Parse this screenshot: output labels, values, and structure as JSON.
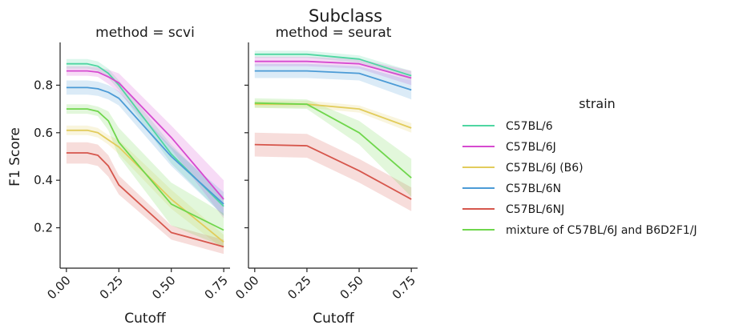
{
  "chart_data": {
    "type": "line",
    "title": "Subclass",
    "xlabel": "Cutoff",
    "ylabel": "F1 Score",
    "xlim": [
      -0.03,
      0.78
    ],
    "ylim": [
      0.03,
      0.98
    ],
    "x_ticks": [
      0.0,
      0.25,
      0.5,
      0.75
    ],
    "x_tick_labels": [
      "0.00",
      "0.25",
      "0.50",
      "0.75"
    ],
    "y_ticks": [
      0.2,
      0.4,
      0.6,
      0.8
    ],
    "y_tick_labels": [
      "0.2",
      "0.4",
      "0.6",
      "0.8"
    ],
    "grid": false,
    "legend": {
      "title": "strain",
      "placement": "right",
      "entries": [
        {
          "name": "C57BL/6",
          "color": "#4fd6a2"
        },
        {
          "name": "C57BL/6J",
          "color": "#d64ad0"
        },
        {
          "name": "C57BL/6J (B6)",
          "color": "#e2cc5c"
        },
        {
          "name": "C57BL/6N",
          "color": "#4c9bd6"
        },
        {
          "name": "C57BL/6NJ",
          "color": "#d6564c"
        },
        {
          "name": "mixture of C57BL/6J and B6D2F1/J",
          "color": "#6fd64c"
        }
      ]
    },
    "panels": [
      {
        "title": "method = scvi",
        "x": [
          0.0,
          0.05,
          0.1,
          0.15,
          0.2,
          0.25,
          0.5,
          0.75
        ],
        "series": [
          {
            "name": "C57BL/6",
            "values": [
              0.89,
              0.89,
              0.89,
              0.88,
              0.85,
              0.8,
              0.51,
              0.29
            ],
            "ci": [
              0.02,
              0.02,
              0.02,
              0.02,
              0.02,
              0.02,
              0.04,
              0.04
            ]
          },
          {
            "name": "C57BL/6J",
            "values": [
              0.86,
              0.86,
              0.86,
              0.855,
              0.835,
              0.81,
              0.58,
              0.32
            ],
            "ci": [
              0.02,
              0.02,
              0.02,
              0.02,
              0.03,
              0.04,
              0.05,
              0.08
            ]
          },
          {
            "name": "C57BL/6J (B6)",
            "values": [
              0.61,
              0.61,
              0.61,
              0.6,
              0.57,
              0.54,
              0.32,
              0.14
            ],
            "ci": [
              0.02,
              0.02,
              0.02,
              0.02,
              0.02,
              0.03,
              0.04,
              0.03
            ]
          },
          {
            "name": "C57BL/6N",
            "values": [
              0.79,
              0.79,
              0.79,
              0.785,
              0.77,
              0.745,
              0.5,
              0.3
            ],
            "ci": [
              0.03,
              0.03,
              0.03,
              0.03,
              0.03,
              0.03,
              0.04,
              0.05
            ]
          },
          {
            "name": "C57BL/6NJ",
            "values": [
              0.515,
              0.515,
              0.515,
              0.505,
              0.46,
              0.38,
              0.18,
              0.12
            ],
            "ci": [
              0.045,
              0.045,
              0.045,
              0.045,
              0.045,
              0.04,
              0.03,
              0.03
            ]
          },
          {
            "name": "mixture of C57BL/6J and B6D2F1/J",
            "values": [
              0.7,
              0.7,
              0.7,
              0.69,
              0.65,
              0.56,
              0.3,
              0.19
            ],
            "ci": [
              0.02,
              0.02,
              0.02,
              0.02,
              0.04,
              0.06,
              0.09,
              0.07
            ]
          }
        ]
      },
      {
        "title": "method = seurat",
        "x": [
          0.0,
          0.25,
          0.5,
          0.75
        ],
        "series": [
          {
            "name": "C57BL/6",
            "values": [
              0.93,
              0.93,
              0.91,
              0.84
            ],
            "ci": [
              0.015,
              0.015,
              0.015,
              0.02
            ]
          },
          {
            "name": "C57BL/6J",
            "values": [
              0.9,
              0.9,
              0.89,
              0.83
            ],
            "ci": [
              0.02,
              0.02,
              0.02,
              0.03
            ]
          },
          {
            "name": "C57BL/6J (B6)",
            "values": [
              0.72,
              0.72,
              0.7,
              0.62
            ],
            "ci": [
              0.015,
              0.015,
              0.015,
              0.02
            ]
          },
          {
            "name": "C57BL/6N",
            "values": [
              0.86,
              0.86,
              0.85,
              0.78
            ],
            "ci": [
              0.03,
              0.03,
              0.03,
              0.04
            ]
          },
          {
            "name": "C57BL/6NJ",
            "values": [
              0.55,
              0.545,
              0.44,
              0.32
            ],
            "ci": [
              0.05,
              0.05,
              0.05,
              0.05
            ]
          },
          {
            "name": "mixture of C57BL/6J and B6D2F1/J",
            "values": [
              0.725,
              0.72,
              0.6,
              0.41
            ],
            "ci": [
              0.02,
              0.02,
              0.05,
              0.08
            ]
          }
        ]
      }
    ]
  }
}
